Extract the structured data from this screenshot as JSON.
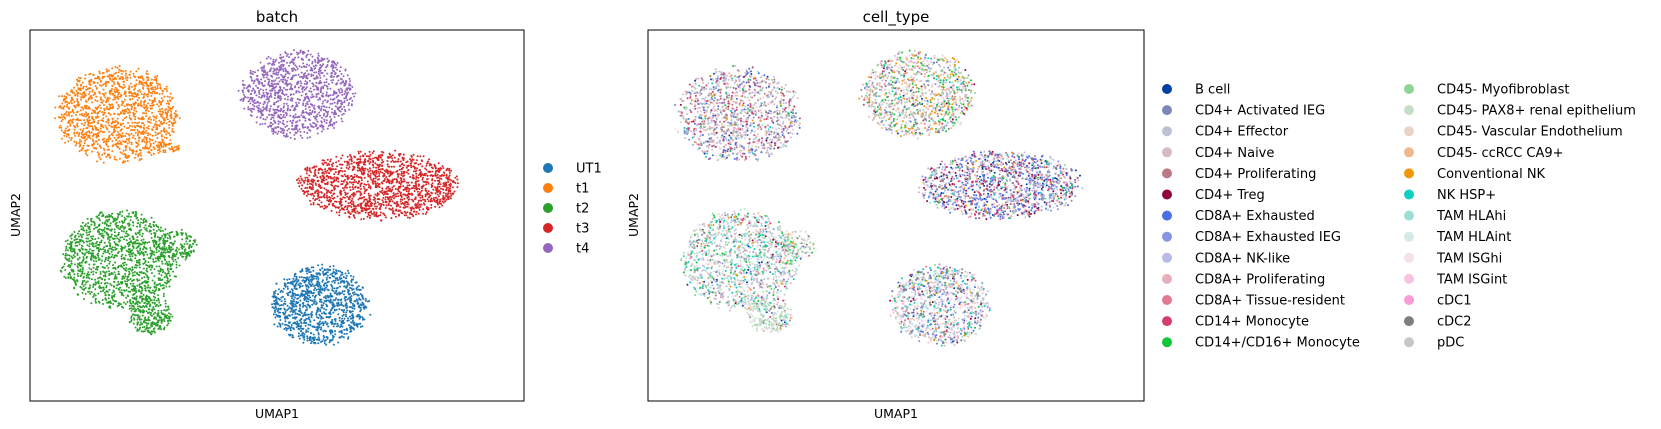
{
  "chart_data": [
    {
      "type": "scatter",
      "title": "batch",
      "xlabel": "UMAP1",
      "ylabel": "UMAP2",
      "xticks": [],
      "yticks": [],
      "grid": false,
      "legend_placement": "right",
      "legend_columns": 1,
      "series": [
        {
          "name": "UT1",
          "color": "#1f77b4",
          "cluster": "bottom-center"
        },
        {
          "name": "t1",
          "color": "#ff7f0e",
          "cluster": "top-left"
        },
        {
          "name": "t2",
          "color": "#2ca02c",
          "cluster": "bottom-left"
        },
        {
          "name": "t3",
          "color": "#d62728",
          "cluster": "middle-right"
        },
        {
          "name": "t4",
          "color": "#9467bd",
          "cluster": "top-center"
        }
      ]
    },
    {
      "type": "scatter",
      "title": "cell_type",
      "xlabel": "UMAP1",
      "ylabel": "UMAP2",
      "xticks": [],
      "yticks": [],
      "grid": false,
      "legend_placement": "right",
      "legend_columns": 2,
      "series": [
        {
          "name": "B cell",
          "color": "#023fa5"
        },
        {
          "name": "CD4+ Activated IEG",
          "color": "#7d87b9"
        },
        {
          "name": "CD4+ Effector",
          "color": "#bec1d4"
        },
        {
          "name": "CD4+ Naive",
          "color": "#d6bcc0"
        },
        {
          "name": "CD4+ Proliferating",
          "color": "#bb7784"
        },
        {
          "name": "CD4+ Treg",
          "color": "#8e063b"
        },
        {
          "name": "CD8A+ Exhausted",
          "color": "#4a6fe3"
        },
        {
          "name": "CD8A+ Exhausted IEG",
          "color": "#8595e1"
        },
        {
          "name": "CD8A+ NK-like",
          "color": "#b5bbe3"
        },
        {
          "name": "CD8A+ Proliferating",
          "color": "#e6afb9"
        },
        {
          "name": "CD8A+ Tissue-resident",
          "color": "#e07b91"
        },
        {
          "name": "CD14+ Monocyte",
          "color": "#d33f6a"
        },
        {
          "name": "CD14+/CD16+ Monocyte",
          "color": "#11c638"
        },
        {
          "name": "CD45- Myofibroblast",
          "color": "#8dd593"
        },
        {
          "name": "CD45- PAX8+ renal epithelium",
          "color": "#c6dec7"
        },
        {
          "name": "CD45- Vascular Endothelium",
          "color": "#ead3c6"
        },
        {
          "name": "CD45- ccRCC CA9+",
          "color": "#f0b98d"
        },
        {
          "name": "Conventional NK",
          "color": "#ef9708"
        },
        {
          "name": "NK HSP+",
          "color": "#0fcfc0"
        },
        {
          "name": "TAM HLAhi",
          "color": "#9cded6"
        },
        {
          "name": "TAM HLAint",
          "color": "#d5eae7"
        },
        {
          "name": "TAM ISGhi",
          "color": "#f3e1eb"
        },
        {
          "name": "TAM ISGint",
          "color": "#f6c4e1"
        },
        {
          "name": "cDC1",
          "color": "#f79cd4"
        },
        {
          "name": "cDC2",
          "color": "#7f7f7f"
        },
        {
          "name": "pDC",
          "color": "#c7c7c7"
        }
      ]
    }
  ]
}
